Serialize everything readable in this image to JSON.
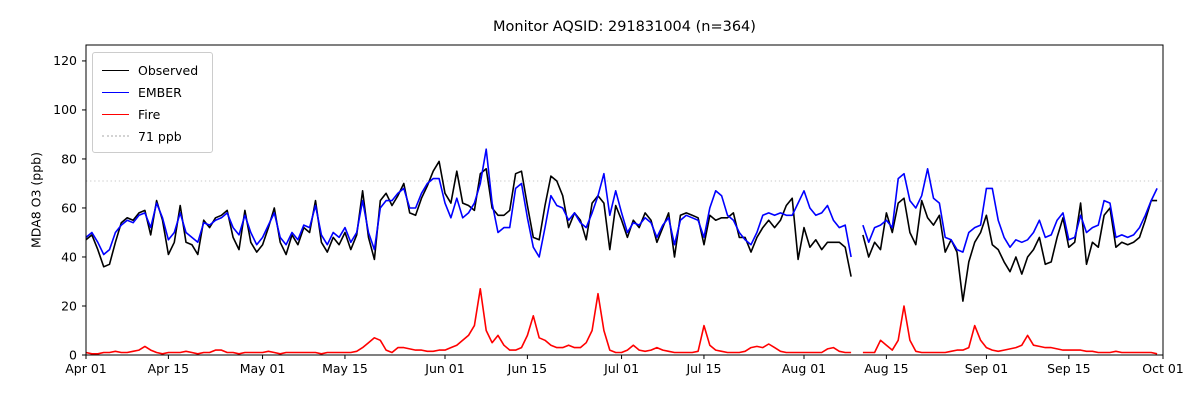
{
  "title": "Monitor AQSID: 291831004 (n=364)",
  "legend": {
    "observed_label": "Observed",
    "ember_label": "EMBER",
    "fire_label": "Fire",
    "threshold_label": "71 ppb"
  },
  "colors": {
    "observed": "#000000",
    "ember": "#0000ff",
    "fire": "#ff0000",
    "threshold": "#d3d3d3",
    "axis": "#000000"
  },
  "chart_data": {
    "type": "line",
    "title": "Monitor AQSID: 291831004 (n=364)",
    "xlabel": "",
    "ylabel": "MDA8 O3 (ppb)",
    "ylim": [
      0,
      126.5
    ],
    "y_ticks": [
      0,
      20,
      40,
      60,
      80,
      100,
      120
    ],
    "grid": false,
    "legend_position": "upper-left",
    "threshold": {
      "value": 71,
      "label": "71 ppb",
      "color": "#d3d3d3",
      "style": "dotted"
    },
    "x_start": "Apr 01",
    "x_end": "Sep 30",
    "days_total": 183,
    "x_ticks": [
      {
        "label": "Apr 01",
        "day": 0
      },
      {
        "label": "Apr 15",
        "day": 14
      },
      {
        "label": "May 01",
        "day": 30
      },
      {
        "label": "May 15",
        "day": 44
      },
      {
        "label": "Jun 01",
        "day": 61
      },
      {
        "label": "Jun 15",
        "day": 75
      },
      {
        "label": "Jul 01",
        "day": 91
      },
      {
        "label": "Jul 15",
        "day": 105
      },
      {
        "label": "Aug 01",
        "day": 122
      },
      {
        "label": "Aug 15",
        "day": 136
      },
      {
        "label": "Sep 01",
        "day": 153
      },
      {
        "label": "Sep 15",
        "day": 167
      },
      {
        "label": "Oct 01",
        "day": 183
      }
    ],
    "series": [
      {
        "name": "Observed",
        "color": "#000000",
        "values": [
          47,
          49,
          43,
          36,
          37,
          46,
          54,
          56,
          55,
          58,
          59,
          49,
          63,
          55,
          41,
          46,
          61,
          46,
          45,
          41,
          55,
          52,
          56,
          57,
          59,
          48,
          43,
          59,
          46,
          42,
          45,
          52,
          60,
          46,
          41,
          49,
          45,
          52,
          50,
          63,
          46,
          42,
          48,
          45,
          50,
          43,
          49,
          67,
          48,
          39,
          63,
          66,
          61,
          65,
          70,
          58,
          57,
          64,
          69,
          75,
          79,
          66,
          62,
          75,
          62,
          61,
          59,
          74,
          76,
          60,
          57,
          57,
          59,
          74,
          75,
          61,
          48,
          47,
          61,
          73,
          71,
          65,
          52,
          58,
          55,
          47,
          62,
          65,
          62,
          43,
          61,
          55,
          48,
          55,
          52,
          58,
          55,
          46,
          52,
          58,
          40,
          57,
          58,
          57,
          56,
          45,
          57,
          55,
          56,
          56,
          58,
          48,
          48,
          42,
          48,
          52,
          55,
          52,
          55,
          61,
          64,
          39,
          52,
          44,
          47,
          43,
          46,
          46,
          46,
          44,
          32,
          null,
          49,
          40,
          46,
          43,
          58,
          50,
          62,
          64,
          50,
          45,
          63,
          56,
          53,
          57,
          42,
          47,
          42,
          22,
          38,
          46,
          50,
          57,
          45,
          43,
          38,
          34,
          40,
          33,
          40,
          43,
          48,
          37,
          38,
          48,
          56,
          44,
          46,
          62,
          37,
          46,
          44,
          57,
          60,
          44,
          46,
          45,
          46,
          48,
          55,
          63,
          63
        ]
      },
      {
        "name": "EMBER",
        "color": "#0000ff",
        "values": [
          48,
          50,
          46,
          41,
          43,
          50,
          53,
          55,
          54,
          57,
          58,
          52,
          62,
          56,
          47,
          50,
          58,
          50,
          48,
          46,
          54,
          53,
          55,
          56,
          58,
          52,
          49,
          57,
          50,
          45,
          48,
          53,
          58,
          48,
          45,
          50,
          47,
          53,
          52,
          61,
          49,
          45,
          50,
          48,
          52,
          46,
          50,
          63,
          50,
          43,
          60,
          63,
          63,
          66,
          68,
          60,
          60,
          66,
          70,
          72,
          72,
          62,
          56,
          64,
          56,
          58,
          62,
          70,
          84,
          62,
          50,
          52,
          52,
          68,
          70,
          56,
          44,
          40,
          52,
          65,
          61,
          60,
          55,
          58,
          54,
          52,
          58,
          65,
          74,
          57,
          67,
          58,
          50,
          54,
          53,
          56,
          54,
          48,
          53,
          56,
          45,
          55,
          57,
          56,
          55,
          48,
          60,
          67,
          65,
          57,
          55,
          50,
          47,
          45,
          50,
          57,
          58,
          57,
          58,
          57,
          57,
          62,
          67,
          60,
          57,
          58,
          61,
          55,
          52,
          53,
          40,
          null,
          53,
          46,
          52,
          53,
          55,
          52,
          72,
          74,
          63,
          60,
          65,
          76,
          64,
          62,
          48,
          47,
          43,
          42,
          50,
          52,
          53,
          68,
          68,
          55,
          48,
          44,
          47,
          46,
          47,
          50,
          55,
          48,
          49,
          55,
          58,
          47,
          48,
          57,
          50,
          52,
          53,
          63,
          62,
          48,
          49,
          48,
          49,
          52,
          57,
          63,
          68
        ]
      },
      {
        "name": "Fire",
        "color": "#ff0000",
        "values": [
          1,
          0.5,
          0.5,
          1,
          1,
          1.5,
          1,
          1,
          1.5,
          2,
          3.5,
          2,
          1,
          0.5,
          1,
          1,
          1,
          1.5,
          1,
          0.5,
          1,
          1,
          2,
          2,
          1,
          1,
          0.5,
          1,
          1,
          1,
          1,
          1.5,
          1,
          0.5,
          1,
          1,
          1,
          1,
          1,
          1,
          0.5,
          1,
          1,
          1,
          1,
          1,
          1.5,
          3,
          5,
          7,
          6,
          2,
          1,
          3,
          3,
          2.5,
          2,
          2,
          1.5,
          1.5,
          2,
          2,
          3,
          4,
          6,
          8,
          12,
          27,
          10,
          5,
          8,
          4,
          2,
          2,
          3,
          8,
          16,
          7,
          6,
          4,
          3,
          3,
          4,
          3,
          3,
          5,
          10,
          25,
          10,
          2,
          1,
          1,
          2,
          4,
          2,
          1.5,
          2,
          3,
          2,
          1.5,
          1,
          1,
          1,
          1,
          1.5,
          12,
          4,
          2,
          1.5,
          1,
          1,
          1,
          1.5,
          3,
          3.5,
          3,
          4.5,
          3,
          1.5,
          1,
          1,
          1,
          1,
          1,
          1,
          1,
          2.5,
          3,
          1.5,
          1,
          1,
          null,
          1,
          1,
          1,
          6,
          4,
          2,
          6,
          20,
          6,
          1.5,
          1,
          1,
          1,
          1,
          1,
          1.5,
          2,
          2,
          3,
          12,
          6,
          3,
          2,
          1.5,
          2,
          2.5,
          3,
          4,
          8,
          4,
          3.5,
          3,
          3,
          2.5,
          2,
          2,
          2,
          2,
          1.5,
          1.5,
          1,
          1,
          1,
          1.5,
          1,
          1,
          1,
          1,
          1,
          1,
          0.5
        ]
      }
    ]
  }
}
